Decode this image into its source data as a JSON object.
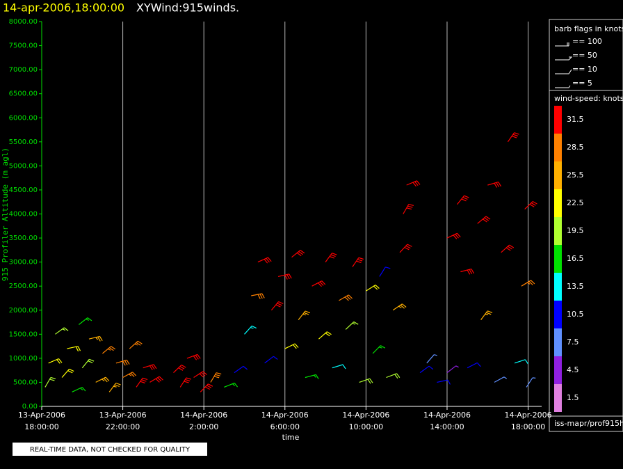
{
  "chart_data": {
    "type": "wind-barb",
    "title": "14-apr-2006,18:00:00",
    "subtitle": "XYWind:915winds.",
    "ylabel": "915 Profiler Altitude (m agl)",
    "xlabel": "time",
    "footnote": "REAL-TIME DATA, NOT CHECKED FOR QUALITY",
    "source": "iss-mapr/prof915h",
    "xlim": [
      "2006-04-13T18:00",
      "2006-04-14T18:40"
    ],
    "xticks": [
      {
        "value": "2006-04-13T18:00",
        "label": [
          "13-Apr-2006",
          "18:00:00"
        ]
      },
      {
        "value": "2006-04-13T22:00",
        "label": [
          "13-Apr-2006",
          "22:00:00"
        ]
      },
      {
        "value": "2006-04-14T02:00",
        "label": [
          "14-Apr-2006",
          "2:00:00"
        ]
      },
      {
        "value": "2006-04-14T06:00",
        "label": [
          "14-Apr-2006",
          "6:00:00"
        ]
      },
      {
        "value": "2006-04-14T10:00",
        "label": [
          "14-Apr-2006",
          "10:00:00"
        ]
      },
      {
        "value": "2006-04-14T14:00",
        "label": [
          "14-Apr-2006",
          "14:00:00"
        ]
      },
      {
        "value": "2006-04-14T18:00",
        "label": [
          "14-Apr-2006",
          "18:00:00"
        ]
      }
    ],
    "ylim": [
      0,
      8000
    ],
    "yticks": [
      {
        "value": 0,
        "label": "0.00"
      },
      {
        "value": 500,
        "label": "500.00"
      },
      {
        "value": 1000,
        "label": "1000.00"
      },
      {
        "value": 1500,
        "label": "1500.00"
      },
      {
        "value": 2000,
        "label": "2000.00"
      },
      {
        "value": 2500,
        "label": "2500.00"
      },
      {
        "value": 3000,
        "label": "3000.00"
      },
      {
        "value": 3500,
        "label": "3500.00"
      },
      {
        "value": 4000,
        "label": "4000.00"
      },
      {
        "value": 4500,
        "label": "4500.00"
      },
      {
        "value": 5000,
        "label": "5000.00"
      },
      {
        "value": 5500,
        "label": "5500.00"
      },
      {
        "value": 6000,
        "label": "6000.00"
      },
      {
        "value": 6500,
        "label": "6500.00"
      },
      {
        "value": 7000,
        "label": "7000.00"
      },
      {
        "value": 7500,
        "label": "7500.00"
      },
      {
        "value": 8000,
        "label": "8000.00"
      }
    ],
    "grid": true,
    "barb_legend": {
      "title": "barb flags in knots",
      "entries": [
        "== 100",
        "== 50",
        "== 10",
        "== 5"
      ]
    },
    "colorbar": {
      "title": "wind-speed: knots",
      "levels": [
        1.5,
        4.5,
        7.5,
        10.5,
        13.5,
        16.5,
        19.5,
        22.5,
        25.5,
        28.5,
        31.5
      ],
      "colors": [
        "#e080e0",
        "#9020e0",
        "#6090ff",
        "#0000ff",
        "#00ffff",
        "#00e000",
        "#b0ff30",
        "#ffff00",
        "#ffb000",
        "#ff8000",
        "#ff0000"
      ]
    },
    "series": [
      {
        "x": [
          "2006-04-13T18:10",
          "2006-04-13T18:20",
          "2006-04-13T18:40",
          "2006-04-13T19:00",
          "2006-04-13T19:15",
          "2006-04-13T19:30",
          "2006-04-13T19:50",
          "2006-04-13T20:00",
          "2006-04-13T20:20",
          "2006-04-13T20:40",
          "2006-04-13T21:00",
          "2006-04-13T21:20",
          "2006-04-13T21:40",
          "2006-04-13T22:00",
          "2006-04-13T22:20",
          "2006-04-13T22:40",
          "2006-04-13T23:00",
          "2006-04-13T23:20",
          "2006-04-14T00:30",
          "2006-04-14T00:50",
          "2006-04-14T01:10",
          "2006-04-14T01:30",
          "2006-04-14T01:50",
          "2006-04-14T02:20",
          "2006-04-14T03:00",
          "2006-04-14T03:30",
          "2006-04-14T04:00",
          "2006-04-14T04:20",
          "2006-04-14T04:40",
          "2006-04-14T05:00",
          "2006-04-14T05:20",
          "2006-04-14T05:40",
          "2006-04-14T06:00",
          "2006-04-14T06:20",
          "2006-04-14T06:40",
          "2006-04-14T07:00",
          "2006-04-14T07:20",
          "2006-04-14T07:40",
          "2006-04-14T08:00",
          "2006-04-14T08:20",
          "2006-04-14T08:40",
          "2006-04-14T09:00",
          "2006-04-14T09:20",
          "2006-04-14T09:40",
          "2006-04-14T10:00",
          "2006-04-14T10:20",
          "2006-04-14T10:40",
          "2006-04-14T11:00",
          "2006-04-14T11:20",
          "2006-04-14T11:40",
          "2006-04-14T11:50",
          "2006-04-14T12:00",
          "2006-04-14T12:40",
          "2006-04-14T13:00",
          "2006-04-14T13:30",
          "2006-04-14T14:00",
          "2006-04-14T14:00",
          "2006-04-14T14:30",
          "2006-04-14T14:40",
          "2006-04-14T15:00",
          "2006-04-14T15:30",
          "2006-04-14T15:40",
          "2006-04-14T16:00",
          "2006-04-14T16:20",
          "2006-04-14T16:40",
          "2006-04-14T17:00",
          "2006-04-14T17:20",
          "2006-04-14T17:40",
          "2006-04-14T17:50",
          "2006-04-14T17:55"
        ],
        "values": [
          400,
          900,
          1500,
          600,
          1200,
          300,
          1700,
          800,
          1400,
          500,
          1100,
          300,
          900,
          600,
          1200,
          400,
          800,
          500,
          700,
          400,
          1000,
          600,
          300,
          500,
          400,
          700,
          1500,
          2300,
          3000,
          900,
          2000,
          2700,
          1200,
          3100,
          1800,
          600,
          2500,
          1400,
          3000,
          800,
          2200,
          1600,
          2900,
          500,
          2400,
          1100,
          2700,
          600,
          2000,
          3200,
          4000,
          4600,
          700,
          900,
          500,
          3500,
          700,
          4200,
          2800,
          800,
          3800,
          1800,
          4600,
          500,
          3200,
          5500,
          900,
          2500,
          4100,
          400
        ],
        "speed": [
          20,
          22,
          19,
          24,
          22,
          18,
          17,
          21,
          26,
          27,
          28,
          26,
          30,
          29,
          28,
          31,
          32,
          33,
          32,
          31,
          33,
          32,
          31,
          30,
          18,
          12,
          15,
          30,
          33,
          11,
          31,
          32,
          22,
          31,
          27,
          17,
          31,
          24,
          32,
          14,
          30,
          19,
          31,
          20,
          23,
          16,
          12,
          21,
          26,
          32,
          33,
          31,
          11,
          9,
          10,
          32,
          6,
          31,
          33,
          12,
          32,
          25,
          33,
          9,
          31,
          32,
          13,
          28,
          31,
          8
        ]
      }
    ]
  }
}
